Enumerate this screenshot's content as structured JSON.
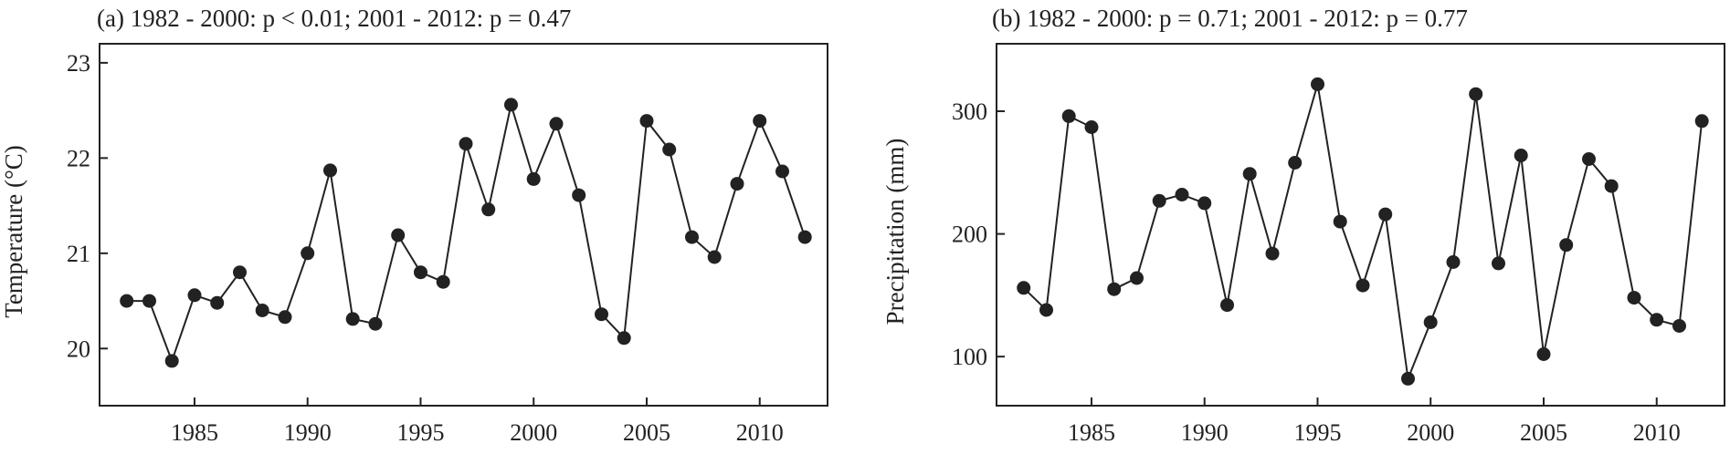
{
  "chart_data": [
    {
      "type": "line",
      "title": "(a) 1982 - 2000: p < 0.01; 2001 - 2012: p = 0.47",
      "xlabel": "",
      "ylabel": "Temperature (°C)",
      "xlim": [
        1980.8,
        2013.0
      ],
      "ylim": [
        19.4,
        23.2
      ],
      "xticks": [
        1985,
        1990,
        1995,
        2000,
        2005,
        2010
      ],
      "yticks": [
        20,
        21,
        22,
        23
      ],
      "grid": false,
      "x": [
        1982,
        1983,
        1984,
        1985,
        1986,
        1987,
        1988,
        1989,
        1990,
        1991,
        1992,
        1993,
        1994,
        1995,
        1996,
        1997,
        1998,
        1999,
        2000,
        2001,
        2002,
        2003,
        2004,
        2005,
        2006,
        2007,
        2008,
        2009,
        2010,
        2011,
        2012
      ],
      "series": [
        {
          "values": [
            20.5,
            20.5,
            19.87,
            20.56,
            20.48,
            20.8,
            20.4,
            20.33,
            21.0,
            21.87,
            20.31,
            20.26,
            21.19,
            20.8,
            20.7,
            22.15,
            21.46,
            22.56,
            21.78,
            22.36,
            21.61,
            20.36,
            20.11,
            22.39,
            22.09,
            21.17,
            20.96,
            21.73,
            22.39,
            21.86,
            21.17
          ]
        }
      ]
    },
    {
      "type": "line",
      "title": "(b) 1982 - 2000: p = 0.71; 2001 - 2012: p = 0.77",
      "xlabel": "",
      "ylabel": "Precipitation (mm)",
      "xlim": [
        1980.8,
        2013.0
      ],
      "ylim": [
        60,
        355
      ],
      "xticks": [
        1985,
        1990,
        1995,
        2000,
        2005,
        2010
      ],
      "yticks": [
        100,
        200,
        300
      ],
      "grid": false,
      "x": [
        1982,
        1983,
        1984,
        1985,
        1986,
        1987,
        1988,
        1989,
        1990,
        1991,
        1992,
        1993,
        1994,
        1995,
        1996,
        1997,
        1998,
        1999,
        2000,
        2001,
        2002,
        2003,
        2004,
        2005,
        2006,
        2007,
        2008,
        2009,
        2010,
        2011,
        2012
      ],
      "series": [
        {
          "values": [
            156,
            138,
            296,
            287,
            155,
            164,
            227,
            232,
            225,
            142,
            249,
            184,
            258,
            322,
            210,
            158,
            216,
            82,
            128,
            177,
            314,
            176,
            264,
            102,
            191,
            261,
            239,
            148,
            130,
            125,
            292
          ]
        }
      ]
    }
  ]
}
